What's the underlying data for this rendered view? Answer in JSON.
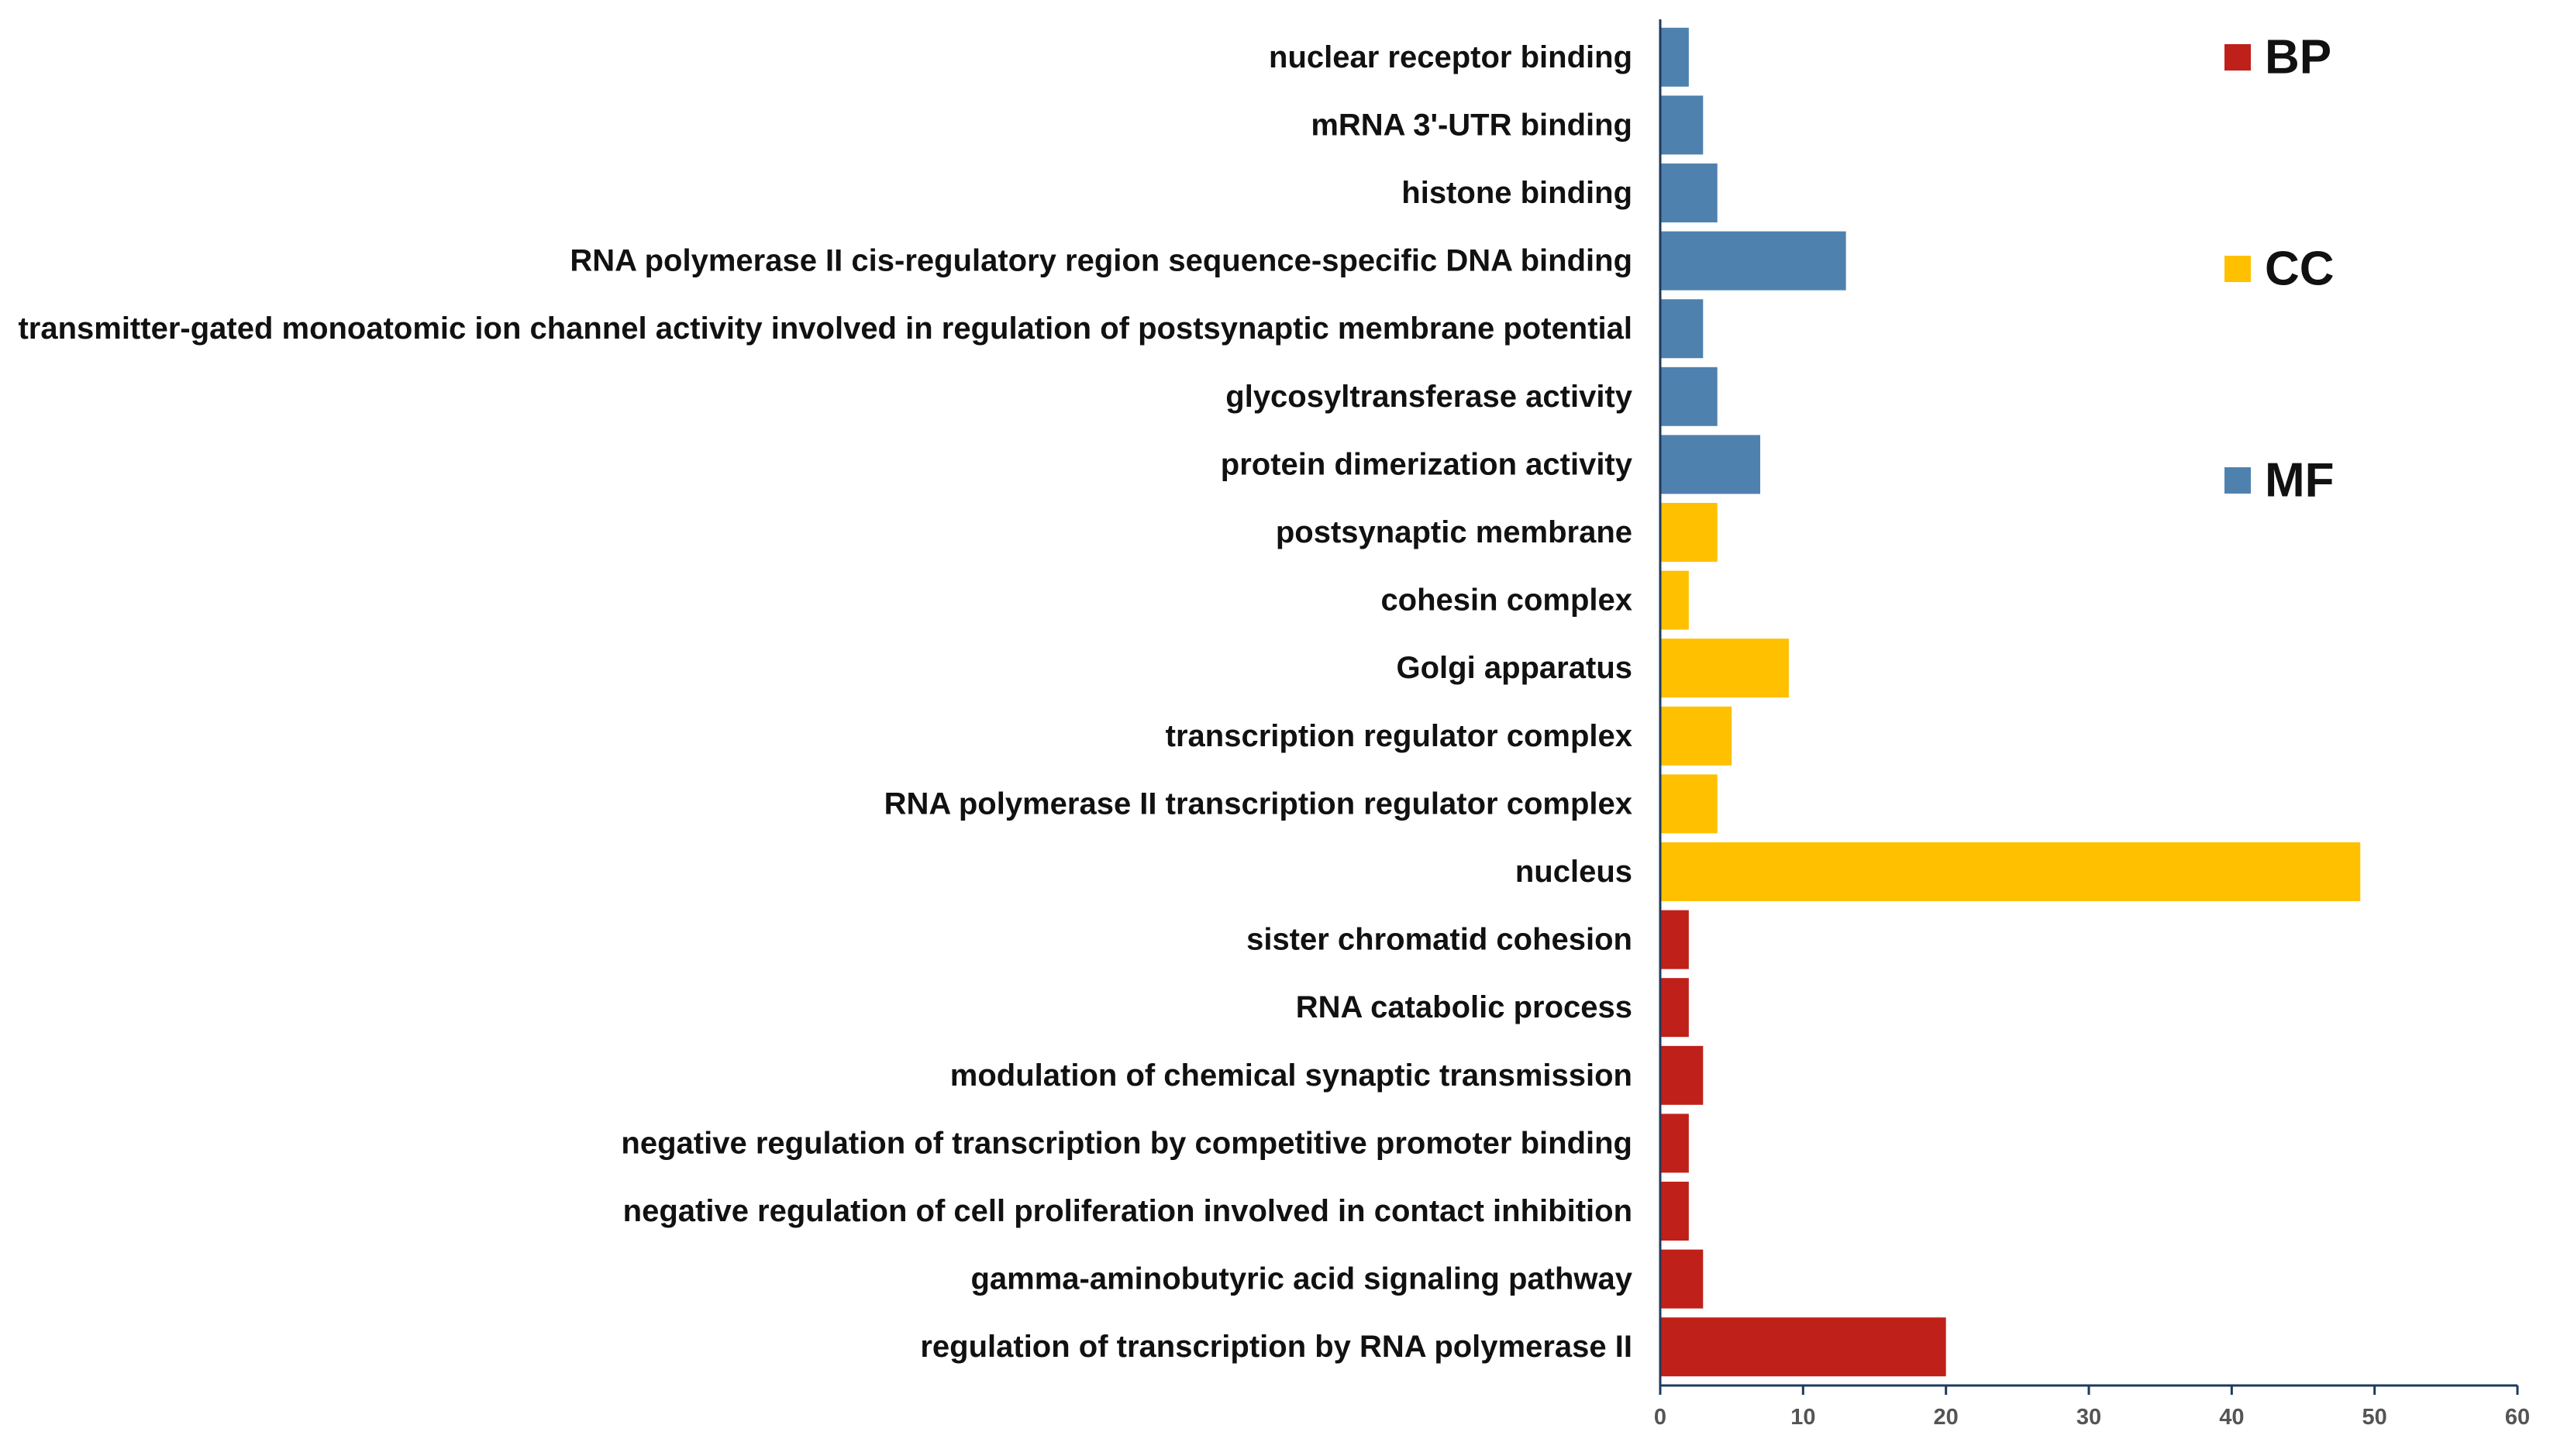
{
  "chart_data": {
    "type": "bar",
    "orientation": "horizontal",
    "title": "",
    "xlabel": "",
    "ylabel": "",
    "xlim": [
      0,
      60
    ],
    "x_ticks": [
      "0",
      "10",
      "20",
      "30",
      "40",
      "50",
      "60"
    ],
    "grid": false,
    "legend_position": "top-right",
    "colors": {
      "BP": "#c0201a",
      "CC": "#ffc000",
      "MF": "#4f81ae"
    },
    "legend": [
      {
        "name": "BP",
        "color": "#c0201a"
      },
      {
        "name": "CC",
        "color": "#ffc000"
      },
      {
        "name": "MF",
        "color": "#4f81ae"
      }
    ],
    "categories": [
      {
        "label": "nuclear receptor binding",
        "value": 2,
        "group": "MF"
      },
      {
        "label": "mRNA 3'-UTR binding",
        "value": 3,
        "group": "MF"
      },
      {
        "label": "histone binding",
        "value": 4,
        "group": "MF"
      },
      {
        "label": "RNA polymerase II cis-regulatory region sequence-specific DNA binding",
        "value": 13,
        "group": "MF"
      },
      {
        "label": "transmitter-gated monoatomic ion channel activity involved in regulation of postsynaptic membrane potential",
        "value": 3,
        "group": "MF"
      },
      {
        "label": "glycosyltransferase activity",
        "value": 4,
        "group": "MF"
      },
      {
        "label": "protein dimerization activity",
        "value": 7,
        "group": "MF"
      },
      {
        "label": "postsynaptic membrane",
        "value": 4,
        "group": "CC"
      },
      {
        "label": "cohesin complex",
        "value": 2,
        "group": "CC"
      },
      {
        "label": "Golgi apparatus",
        "value": 9,
        "group": "CC"
      },
      {
        "label": "transcription regulator complex",
        "value": 5,
        "group": "CC"
      },
      {
        "label": "RNA polymerase II transcription regulator complex",
        "value": 4,
        "group": "CC"
      },
      {
        "label": "nucleus",
        "value": 49,
        "group": "CC"
      },
      {
        "label": "sister chromatid cohesion",
        "value": 2,
        "group": "BP"
      },
      {
        "label": "RNA catabolic process",
        "value": 2,
        "group": "BP"
      },
      {
        "label": "modulation of chemical synaptic transmission",
        "value": 3,
        "group": "BP"
      },
      {
        "label": "negative regulation of transcription by competitive promoter binding",
        "value": 2,
        "group": "BP"
      },
      {
        "label": "negative regulation of cell proliferation involved in contact inhibition",
        "value": 2,
        "group": "BP"
      },
      {
        "label": "gamma-aminobutyric acid signaling pathway",
        "value": 3,
        "group": "BP"
      },
      {
        "label": "regulation of transcription by RNA polymerase II",
        "value": 20,
        "group": "BP"
      }
    ]
  }
}
